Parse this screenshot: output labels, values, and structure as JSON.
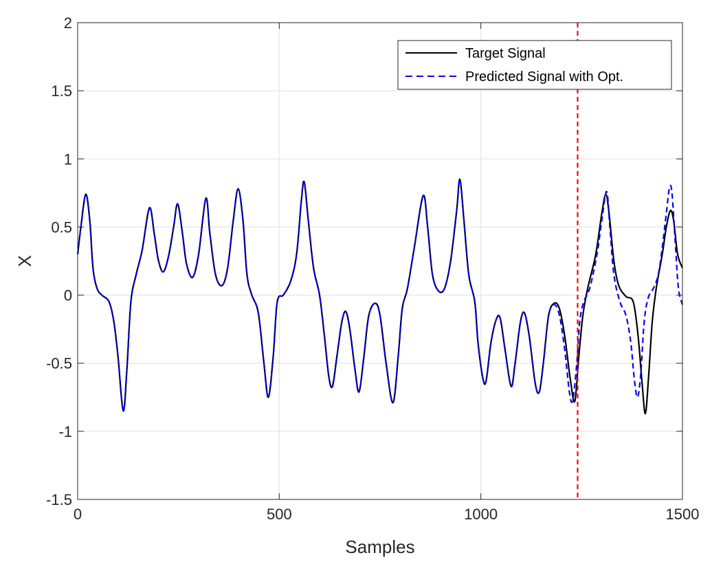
{
  "chart_data": {
    "type": "line",
    "title": "",
    "xlabel": "Samples",
    "ylabel": "X",
    "xlim": [
      0,
      1500
    ],
    "ylim": [
      -1.5,
      2
    ],
    "xticks": [
      0,
      500,
      1000,
      1500
    ],
    "xtick_labels": [
      "0",
      "500",
      "1000",
      "1500"
    ],
    "yticks": [
      -1.5,
      -1,
      -0.5,
      0,
      0.5,
      1,
      1.5,
      2
    ],
    "ytick_labels": [
      "-1.5",
      "-1",
      "-0.5",
      "0",
      "0.5",
      "1",
      "1.5",
      "2"
    ],
    "grid": true,
    "legend_position": "top-right",
    "vertical_marker": {
      "x": 1240,
      "color": "#ff0000",
      "style": "dashed"
    },
    "series": [
      {
        "name": "Target Signal",
        "color": "#000000",
        "style": "solid",
        "points": [
          [
            0,
            0.3
          ],
          [
            8,
            0.5
          ],
          [
            20,
            0.74
          ],
          [
            30,
            0.55
          ],
          [
            38,
            0.2
          ],
          [
            48,
            0.05
          ],
          [
            60,
            0.0
          ],
          [
            78,
            -0.05
          ],
          [
            90,
            -0.2
          ],
          [
            100,
            -0.45
          ],
          [
            113,
            -0.85
          ],
          [
            122,
            -0.55
          ],
          [
            132,
            -0.05
          ],
          [
            145,
            0.15
          ],
          [
            160,
            0.33
          ],
          [
            178,
            0.64
          ],
          [
            190,
            0.45
          ],
          [
            200,
            0.26
          ],
          [
            212,
            0.17
          ],
          [
            225,
            0.28
          ],
          [
            238,
            0.5
          ],
          [
            248,
            0.67
          ],
          [
            260,
            0.45
          ],
          [
            270,
            0.23
          ],
          [
            285,
            0.13
          ],
          [
            300,
            0.3
          ],
          [
            318,
            0.71
          ],
          [
            328,
            0.45
          ],
          [
            342,
            0.15
          ],
          [
            358,
            0.07
          ],
          [
            372,
            0.2
          ],
          [
            386,
            0.55
          ],
          [
            398,
            0.78
          ],
          [
            410,
            0.55
          ],
          [
            420,
            0.15
          ],
          [
            432,
            0.0
          ],
          [
            448,
            -0.13
          ],
          [
            462,
            -0.5
          ],
          [
            473,
            -0.75
          ],
          [
            485,
            -0.45
          ],
          [
            495,
            -0.05
          ],
          [
            510,
            0.0
          ],
          [
            528,
            0.1
          ],
          [
            543,
            0.3
          ],
          [
            555,
            0.7
          ],
          [
            562,
            0.83
          ],
          [
            572,
            0.55
          ],
          [
            585,
            0.2
          ],
          [
            600,
            0.0
          ],
          [
            612,
            -0.3
          ],
          [
            623,
            -0.6
          ],
          [
            632,
            -0.67
          ],
          [
            643,
            -0.45
          ],
          [
            655,
            -0.2
          ],
          [
            665,
            -0.12
          ],
          [
            675,
            -0.25
          ],
          [
            688,
            -0.55
          ],
          [
            698,
            -0.71
          ],
          [
            710,
            -0.45
          ],
          [
            722,
            -0.15
          ],
          [
            738,
            -0.06
          ],
          [
            750,
            -0.15
          ],
          [
            765,
            -0.5
          ],
          [
            782,
            -0.79
          ],
          [
            795,
            -0.45
          ],
          [
            805,
            -0.1
          ],
          [
            818,
            0.05
          ],
          [
            835,
            0.35
          ],
          [
            857,
            0.73
          ],
          [
            868,
            0.5
          ],
          [
            880,
            0.15
          ],
          [
            895,
            0.03
          ],
          [
            910,
            0.05
          ],
          [
            925,
            0.25
          ],
          [
            940,
            0.62
          ],
          [
            948,
            0.85
          ],
          [
            958,
            0.55
          ],
          [
            970,
            0.15
          ],
          [
            985,
            -0.05
          ],
          [
            993,
            -0.35
          ],
          [
            1005,
            -0.61
          ],
          [
            1013,
            -0.63
          ],
          [
            1025,
            -0.35
          ],
          [
            1038,
            -0.18
          ],
          [
            1048,
            -0.17
          ],
          [
            1060,
            -0.4
          ],
          [
            1075,
            -0.67
          ],
          [
            1085,
            -0.5
          ],
          [
            1098,
            -0.2
          ],
          [
            1108,
            -0.13
          ],
          [
            1120,
            -0.3
          ],
          [
            1135,
            -0.65
          ],
          [
            1145,
            -0.71
          ],
          [
            1155,
            -0.5
          ],
          [
            1168,
            -0.15
          ],
          [
            1182,
            -0.06
          ],
          [
            1195,
            -0.1
          ],
          [
            1208,
            -0.3
          ],
          [
            1222,
            -0.62
          ],
          [
            1233,
            -0.78
          ],
          [
            1243,
            -0.45
          ],
          [
            1253,
            -0.15
          ],
          [
            1265,
            0.05
          ],
          [
            1285,
            0.3
          ],
          [
            1300,
            0.6
          ],
          [
            1310,
            0.74
          ],
          [
            1318,
            0.6
          ],
          [
            1330,
            0.25
          ],
          [
            1342,
            0.07
          ],
          [
            1360,
            -0.01
          ],
          [
            1378,
            -0.05
          ],
          [
            1390,
            -0.3
          ],
          [
            1400,
            -0.65
          ],
          [
            1408,
            -0.87
          ],
          [
            1416,
            -0.6
          ],
          [
            1425,
            -0.2
          ],
          [
            1435,
            0.05
          ],
          [
            1450,
            0.3
          ],
          [
            1460,
            0.5
          ],
          [
            1470,
            0.62
          ],
          [
            1478,
            0.55
          ],
          [
            1488,
            0.3
          ],
          [
            1500,
            0.2
          ]
        ]
      },
      {
        "name": "Predicted Signal with Opt.",
        "color": "#0000ff",
        "style": "dashed",
        "points": [
          [
            0,
            0.3
          ],
          [
            8,
            0.5
          ],
          [
            20,
            0.74
          ],
          [
            30,
            0.55
          ],
          [
            38,
            0.2
          ],
          [
            48,
            0.05
          ],
          [
            60,
            0.0
          ],
          [
            78,
            -0.05
          ],
          [
            90,
            -0.2
          ],
          [
            100,
            -0.45
          ],
          [
            113,
            -0.85
          ],
          [
            122,
            -0.55
          ],
          [
            132,
            -0.05
          ],
          [
            145,
            0.15
          ],
          [
            160,
            0.33
          ],
          [
            178,
            0.64
          ],
          [
            190,
            0.45
          ],
          [
            200,
            0.26
          ],
          [
            212,
            0.17
          ],
          [
            225,
            0.28
          ],
          [
            238,
            0.5
          ],
          [
            248,
            0.67
          ],
          [
            260,
            0.45
          ],
          [
            270,
            0.23
          ],
          [
            285,
            0.13
          ],
          [
            300,
            0.3
          ],
          [
            318,
            0.71
          ],
          [
            328,
            0.45
          ],
          [
            342,
            0.15
          ],
          [
            358,
            0.07
          ],
          [
            372,
            0.2
          ],
          [
            386,
            0.55
          ],
          [
            398,
            0.78
          ],
          [
            410,
            0.55
          ],
          [
            420,
            0.15
          ],
          [
            432,
            0.0
          ],
          [
            448,
            -0.13
          ],
          [
            462,
            -0.5
          ],
          [
            473,
            -0.75
          ],
          [
            485,
            -0.45
          ],
          [
            495,
            -0.05
          ],
          [
            510,
            0.0
          ],
          [
            528,
            0.1
          ],
          [
            543,
            0.3
          ],
          [
            555,
            0.7
          ],
          [
            562,
            0.83
          ],
          [
            572,
            0.55
          ],
          [
            585,
            0.2
          ],
          [
            600,
            0.0
          ],
          [
            612,
            -0.3
          ],
          [
            623,
            -0.6
          ],
          [
            632,
            -0.67
          ],
          [
            643,
            -0.45
          ],
          [
            655,
            -0.2
          ],
          [
            665,
            -0.12
          ],
          [
            675,
            -0.25
          ],
          [
            688,
            -0.55
          ],
          [
            698,
            -0.71
          ],
          [
            710,
            -0.45
          ],
          [
            722,
            -0.15
          ],
          [
            738,
            -0.06
          ],
          [
            750,
            -0.15
          ],
          [
            765,
            -0.5
          ],
          [
            782,
            -0.79
          ],
          [
            795,
            -0.45
          ],
          [
            805,
            -0.1
          ],
          [
            818,
            0.05
          ],
          [
            835,
            0.35
          ],
          [
            857,
            0.73
          ],
          [
            868,
            0.5
          ],
          [
            880,
            0.15
          ],
          [
            895,
            0.03
          ],
          [
            910,
            0.05
          ],
          [
            925,
            0.25
          ],
          [
            940,
            0.62
          ],
          [
            948,
            0.85
          ],
          [
            958,
            0.55
          ],
          [
            970,
            0.15
          ],
          [
            985,
            -0.05
          ],
          [
            993,
            -0.35
          ],
          [
            1005,
            -0.61
          ],
          [
            1013,
            -0.63
          ],
          [
            1025,
            -0.35
          ],
          [
            1038,
            -0.18
          ],
          [
            1048,
            -0.17
          ],
          [
            1060,
            -0.4
          ],
          [
            1075,
            -0.67
          ],
          [
            1085,
            -0.5
          ],
          [
            1098,
            -0.2
          ],
          [
            1108,
            -0.13
          ],
          [
            1120,
            -0.3
          ],
          [
            1135,
            -0.65
          ],
          [
            1145,
            -0.71
          ],
          [
            1155,
            -0.5
          ],
          [
            1168,
            -0.15
          ],
          [
            1182,
            -0.07
          ],
          [
            1195,
            -0.15
          ],
          [
            1208,
            -0.4
          ],
          [
            1220,
            -0.72
          ],
          [
            1228,
            -0.77
          ],
          [
            1238,
            -0.5
          ],
          [
            1245,
            -0.2
          ],
          [
            1255,
            -0.05
          ],
          [
            1270,
            0.05
          ],
          [
            1288,
            0.3
          ],
          [
            1300,
            0.55
          ],
          [
            1312,
            0.76
          ],
          [
            1320,
            0.5
          ],
          [
            1330,
            0.15
          ],
          [
            1345,
            -0.05
          ],
          [
            1360,
            -0.15
          ],
          [
            1372,
            -0.35
          ],
          [
            1380,
            -0.6
          ],
          [
            1388,
            -0.75
          ],
          [
            1396,
            -0.6
          ],
          [
            1405,
            -0.2
          ],
          [
            1415,
            -0.02
          ],
          [
            1428,
            0.05
          ],
          [
            1440,
            0.15
          ],
          [
            1450,
            0.35
          ],
          [
            1460,
            0.6
          ],
          [
            1468,
            0.79
          ],
          [
            1474,
            0.75
          ],
          [
            1482,
            0.4
          ],
          [
            1490,
            0.05
          ],
          [
            1500,
            -0.07
          ]
        ]
      }
    ]
  }
}
